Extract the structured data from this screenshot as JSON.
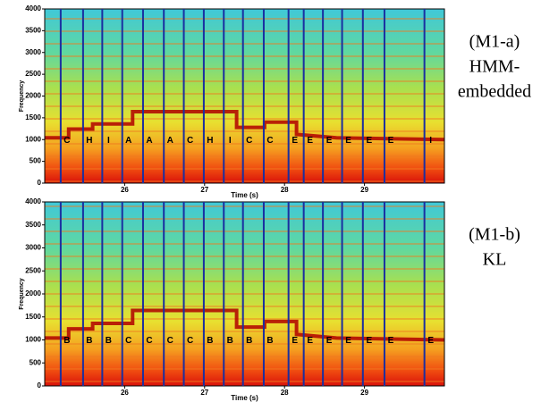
{
  "chart_data": [
    {
      "type": "spectrogram",
      "xlabel": "Time (s)",
      "ylabel": "Frequency",
      "xlim": [
        25.0,
        30.0
      ],
      "xticks": [
        26,
        27,
        28,
        29
      ],
      "ylim": [
        0,
        4000
      ],
      "yticks": [
        0,
        500,
        1000,
        1500,
        2000,
        2500,
        3000,
        3500,
        4000
      ],
      "boundaries": [
        25.2,
        25.48,
        25.72,
        25.97,
        26.23,
        26.49,
        26.74,
        26.99,
        27.24,
        27.48,
        27.74,
        28.05,
        28.24,
        28.48,
        28.72,
        28.98,
        29.25,
        29.75
      ],
      "labels": [
        "C",
        "H",
        "I",
        "A",
        "A",
        "A",
        "C",
        "H",
        "I",
        "C",
        "C",
        "E",
        "E",
        "E",
        "E",
        "E",
        "E",
        "I"
      ],
      "boundary_color": "#1a2fa0",
      "caption": [
        "(M1-a)",
        "HMM-",
        "embedded"
      ]
    },
    {
      "type": "spectrogram",
      "xlabel": "Time (s)",
      "ylabel": "Frequency",
      "xlim": [
        25.0,
        30.0
      ],
      "xticks": [
        26,
        27,
        28,
        29
      ],
      "ylim": [
        0,
        4000
      ],
      "yticks": [
        0,
        500,
        1000,
        1500,
        2000,
        2500,
        3000,
        3500,
        4000
      ],
      "boundaries": [
        25.2,
        25.48,
        25.72,
        25.97,
        26.23,
        26.49,
        26.74,
        26.99,
        27.24,
        27.48,
        27.74,
        28.05,
        28.24,
        28.48,
        28.72,
        28.98,
        29.25,
        29.75
      ],
      "labels": [
        "B",
        "B",
        "B",
        "C",
        "C",
        "C",
        "C",
        "B",
        "B",
        "B",
        "B",
        "E",
        "E",
        "E",
        "E",
        "E",
        "E",
        "E"
      ],
      "boundary_color": "#1a2fa0",
      "caption": [
        "(M1-b)",
        "KL"
      ]
    }
  ]
}
